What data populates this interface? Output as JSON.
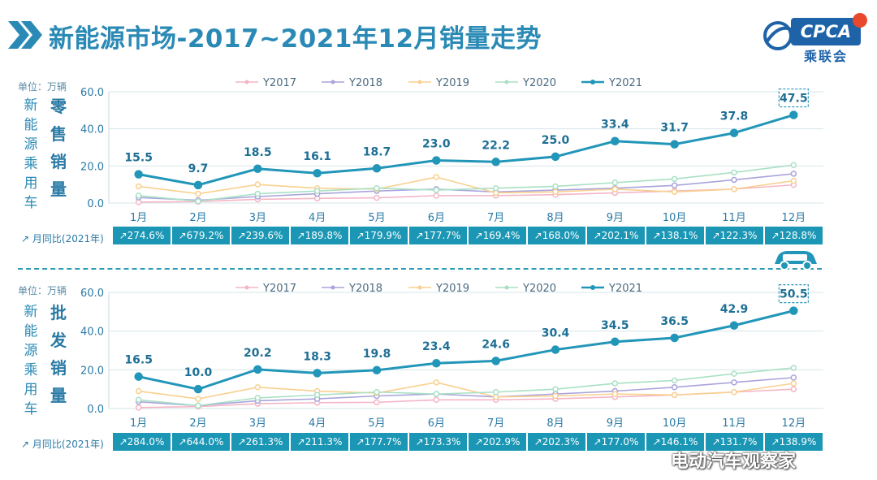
{
  "title": "新能源市场-2017~2021年12月销量走势",
  "logo": {
    "brand": "CPCA",
    "sub": "乘联会"
  },
  "unit": "单位：万辆",
  "side_label": [
    "新",
    "能",
    "源",
    "乘",
    "用",
    "车"
  ],
  "months": [
    "1月",
    "2月",
    "3月",
    "4月",
    "5月",
    "6月",
    "7月",
    "8月",
    "9月",
    "10月",
    "11月",
    "12月"
  ],
  "legend": [
    "Y2017",
    "Y2018",
    "Y2019",
    "Y2020",
    "Y2021"
  ],
  "colors": {
    "Y2017": "#f4b5c6",
    "Y2018": "#a9a4dc",
    "Y2019": "#f9d08f",
    "Y2020": "#a9e0c5",
    "Y2021": "#2296b8"
  },
  "yoy_label": "月同比(2021年)",
  "retail": {
    "section_label": [
      "零",
      "售",
      "销",
      "量"
    ],
    "yoy": [
      "274.6%",
      "679.2%",
      "239.6%",
      "189.8%",
      "179.9%",
      "177.7%",
      "169.4%",
      "168.0%",
      "202.1%",
      "138.1%",
      "122.3%",
      "128.8%"
    ]
  },
  "wholesale": {
    "section_label": [
      "批",
      "发",
      "销",
      "量"
    ],
    "yoy": [
      "284.0%",
      "644.0%",
      "261.3%",
      "211.3%",
      "177.7%",
      "173.3%",
      "202.9%",
      "202.3%",
      "177.0%",
      "146.1%",
      "131.7%",
      "138.9%"
    ]
  },
  "watermark": "电动汽车观察家",
  "chart_data": [
    {
      "type": "line",
      "name": "零售销量",
      "categories": [
        "1月",
        "2月",
        "3月",
        "4月",
        "5月",
        "6月",
        "7月",
        "8月",
        "9月",
        "10月",
        "11月",
        "12月"
      ],
      "ylim": [
        0,
        60
      ],
      "yticks": [
        "0.0",
        "20.0",
        "40.0",
        "60.0"
      ],
      "ylabel": "单位：万辆",
      "series": [
        {
          "name": "Y2017",
          "values": [
            0.5,
            0.8,
            2.0,
            2.5,
            2.8,
            4.0,
            4.0,
            4.5,
            5.5,
            6.5,
            7.5,
            9.8
          ]
        },
        {
          "name": "Y2018",
          "values": [
            3.0,
            1.5,
            3.5,
            5.0,
            6.5,
            7.5,
            6.0,
            7.0,
            8.0,
            9.5,
            12.5,
            15.8
          ]
        },
        {
          "name": "Y2019",
          "values": [
            9.0,
            5.0,
            10.0,
            8.0,
            7.5,
            14.0,
            5.5,
            6.0,
            7.5,
            6.0,
            7.5,
            12.0
          ]
        },
        {
          "name": "Y2020",
          "values": [
            4.0,
            1.0,
            5.0,
            6.5,
            8.0,
            7.0,
            8.0,
            9.0,
            11.0,
            13.0,
            16.5,
            20.5
          ]
        },
        {
          "name": "Y2021",
          "values": [
            15.5,
            9.7,
            18.5,
            16.1,
            18.7,
            23.0,
            22.2,
            25.0,
            33.4,
            31.7,
            37.8,
            47.5
          ],
          "labels": [
            "15.5",
            "9.7",
            "18.5",
            "16.1",
            "18.7",
            "23.0",
            "22.2",
            "25.0",
            "33.4",
            "31.7",
            "37.8",
            "47.5"
          ]
        }
      ]
    },
    {
      "type": "line",
      "name": "批发销量",
      "categories": [
        "1月",
        "2月",
        "3月",
        "4月",
        "5月",
        "6月",
        "7月",
        "8月",
        "9月",
        "10月",
        "11月",
        "12月"
      ],
      "ylim": [
        0,
        60
      ],
      "yticks": [
        "0.0",
        "20.0",
        "40.0",
        "60.0"
      ],
      "ylabel": "单位：万辆",
      "series": [
        {
          "name": "Y2017",
          "values": [
            0.5,
            1.0,
            2.5,
            3.0,
            3.2,
            4.5,
            4.5,
            5.0,
            6.0,
            7.0,
            8.5,
            10.0
          ]
        },
        {
          "name": "Y2018",
          "values": [
            3.5,
            1.5,
            4.0,
            5.0,
            6.5,
            7.5,
            6.0,
            7.5,
            9.0,
            11.0,
            13.5,
            16.0
          ]
        },
        {
          "name": "Y2019",
          "values": [
            9.0,
            5.0,
            11.0,
            9.0,
            8.0,
            13.5,
            6.0,
            6.5,
            7.5,
            7.0,
            8.5,
            13.0
          ]
        },
        {
          "name": "Y2020",
          "values": [
            4.5,
            1.5,
            5.5,
            7.0,
            8.5,
            7.5,
            8.5,
            10.0,
            13.0,
            14.5,
            18.0,
            21.0
          ]
        },
        {
          "name": "Y2021",
          "values": [
            16.5,
            10.0,
            20.2,
            18.3,
            19.8,
            23.4,
            24.6,
            30.4,
            34.5,
            36.5,
            42.9,
            50.5
          ],
          "labels": [
            "16.5",
            "10.0",
            "20.2",
            "18.3",
            "19.8",
            "23.4",
            "24.6",
            "30.4",
            "34.5",
            "36.5",
            "42.9",
            "50.5"
          ]
        }
      ]
    }
  ]
}
